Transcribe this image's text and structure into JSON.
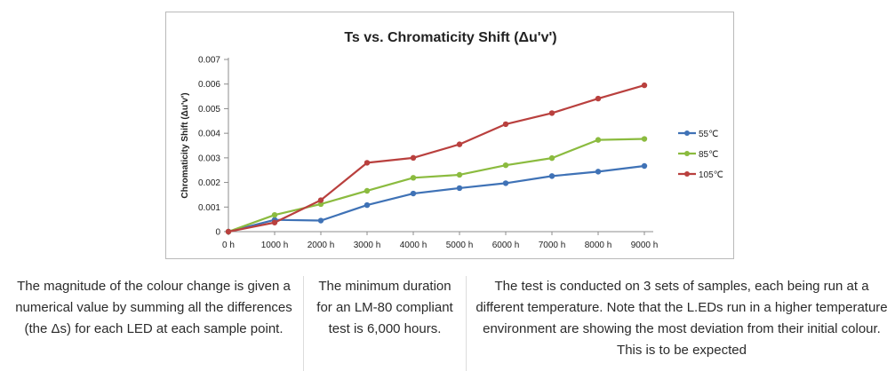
{
  "chart_data": {
    "type": "line",
    "title": "Ts vs. Chromaticity Shift (Δu'v')",
    "xlabel": "",
    "ylabel": "Chromaticity Shift (Δu'v')",
    "categories": [
      "0 h",
      "1000 h",
      "2000 h",
      "3000 h",
      "4000 h",
      "5000 h",
      "6000 h",
      "7000 h",
      "8000 h",
      "9000 h"
    ],
    "yticks": [
      "0",
      "0.001",
      "0.002",
      "0.003",
      "0.004",
      "0.005",
      "0.006",
      "0.007"
    ],
    "ylim": [
      0,
      0.007
    ],
    "grid": false,
    "legend": "right",
    "series": [
      {
        "name": "55℃",
        "color": "#3f72b6",
        "values": [
          0,
          0.00048,
          0.00045,
          0.00108,
          0.00155,
          0.00177,
          0.00197,
          0.00226,
          0.00244,
          0.00267
        ]
      },
      {
        "name": "85℃",
        "color": "#8bbb3f",
        "values": [
          0,
          0.00068,
          0.00112,
          0.00166,
          0.00219,
          0.00231,
          0.0027,
          0.00299,
          0.00373,
          0.00377
        ]
      },
      {
        "name": "105℃",
        "color": "#b9403e",
        "values": [
          0,
          0.00037,
          0.00128,
          0.0028,
          0.003,
          0.00355,
          0.00437,
          0.00482,
          0.00541,
          0.00595
        ]
      }
    ]
  },
  "captions": {
    "col1": "The magnitude of the colour change is given a numerical value by summing all the differences (the Δs) for each LED at each sample point.",
    "col2": "The minimum duration for an LM-80 compliant test is 6,000 hours.",
    "col3": "The test is conducted on 3 sets of samples, each being run at a different temperature. Note that the L.EDs run in a higher temperature environment are showing the most deviation from their initial colour. This is to be expected"
  }
}
